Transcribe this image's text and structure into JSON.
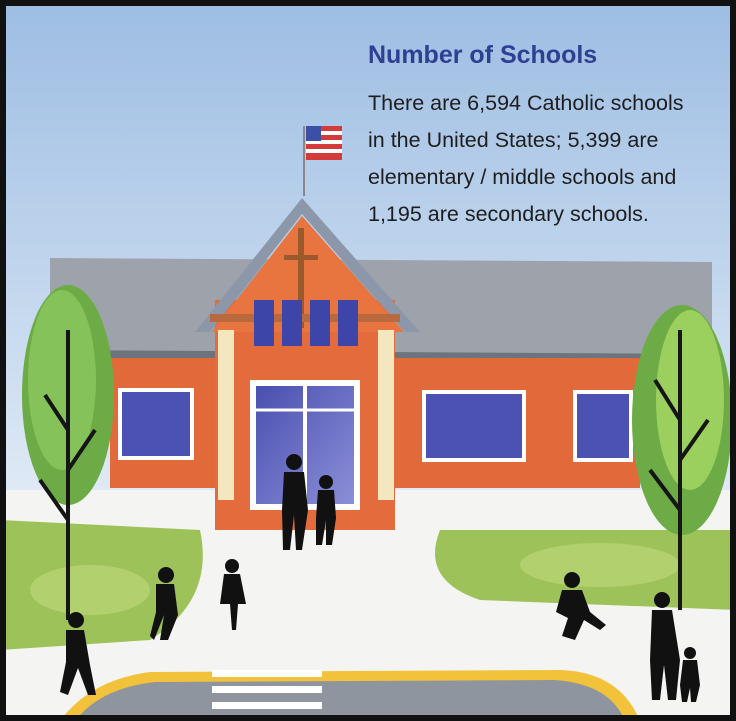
{
  "title": "Number of Schools",
  "body": [
    "There are 6,594 Catholic schools",
    "in the United States; 5,399 are",
    "elementary / middle schools and",
    "1,195 are secondary schools."
  ]
}
